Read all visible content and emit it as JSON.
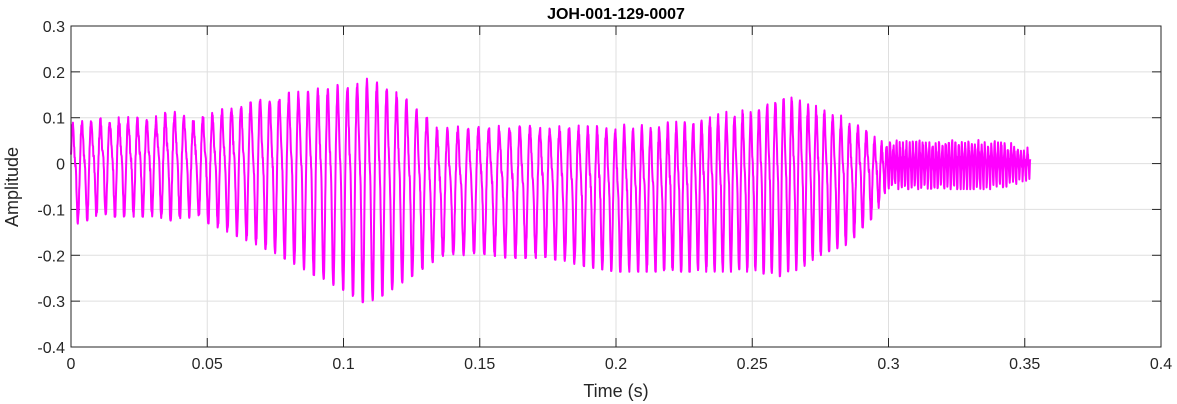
{
  "chart_data": {
    "type": "line",
    "title": "JOH-001-129-0007",
    "xlabel": "Time (s)",
    "ylabel": "Amplitude",
    "xlim": [
      0,
      0.4
    ],
    "ylim": [
      -0.4,
      0.3
    ],
    "x_ticks": [
      "0",
      "0.05",
      "0.1",
      "0.15",
      "0.2",
      "0.25",
      "0.3",
      "0.35",
      "0.4"
    ],
    "y_ticks": [
      "-0.4",
      "-0.3",
      "-0.2",
      "-0.1",
      "0",
      "0.1",
      "0.2",
      "0.3"
    ],
    "grid": true,
    "line_color": "#ff00ff",
    "series": [
      {
        "x_start": 0,
        "x_end": 0.352,
        "envelope": {
          "time": [
            0,
            0.01,
            0.02,
            0.03,
            0.038,
            0.045,
            0.06,
            0.075,
            0.09,
            0.1,
            0.108,
            0.115,
            0.125,
            0.135,
            0.15,
            0.16,
            0.175,
            0.19,
            0.2,
            0.21,
            0.225,
            0.24,
            0.25,
            0.26,
            0.265,
            0.275,
            0.285,
            0.293,
            0.297,
            0.3,
            0.32,
            0.34,
            0.352
          ],
          "upper": [
            0.1,
            0.11,
            0.11,
            0.11,
            0.13,
            0.11,
            0.14,
            0.17,
            0.19,
            0.2,
            0.22,
            0.2,
            0.16,
            0.09,
            0.1,
            0.1,
            0.1,
            0.1,
            0.1,
            0.1,
            0.11,
            0.13,
            0.14,
            0.17,
            0.17,
            0.14,
            0.11,
            0.08,
            0.05,
            0.05,
            0.05,
            0.05,
            0.03
          ],
          "lower": [
            -0.13,
            -0.11,
            -0.11,
            -0.11,
            -0.12,
            -0.11,
            -0.15,
            -0.19,
            -0.24,
            -0.27,
            -0.3,
            -0.28,
            -0.24,
            -0.2,
            -0.19,
            -0.2,
            -0.2,
            -0.22,
            -0.23,
            -0.23,
            -0.23,
            -0.23,
            -0.23,
            -0.24,
            -0.23,
            -0.2,
            -0.17,
            -0.12,
            -0.09,
            -0.05,
            -0.05,
            -0.05,
            -0.03
          ],
          "period": [
            0.0034,
            0.0034,
            0.0034,
            0.0034,
            0.0034,
            0.0035,
            0.0035,
            0.0035,
            0.0036,
            0.0036,
            0.0036,
            0.0036,
            0.0037,
            0.0038,
            0.0038,
            0.0038,
            0.0036,
            0.0034,
            0.0033,
            0.0032,
            0.0031,
            0.003,
            0.003,
            0.003,
            0.003,
            0.003,
            0.0031,
            0.0031,
            0.0025,
            0.0012,
            0.0012,
            0.0012,
            0.0012
          ]
        }
      }
    ]
  }
}
